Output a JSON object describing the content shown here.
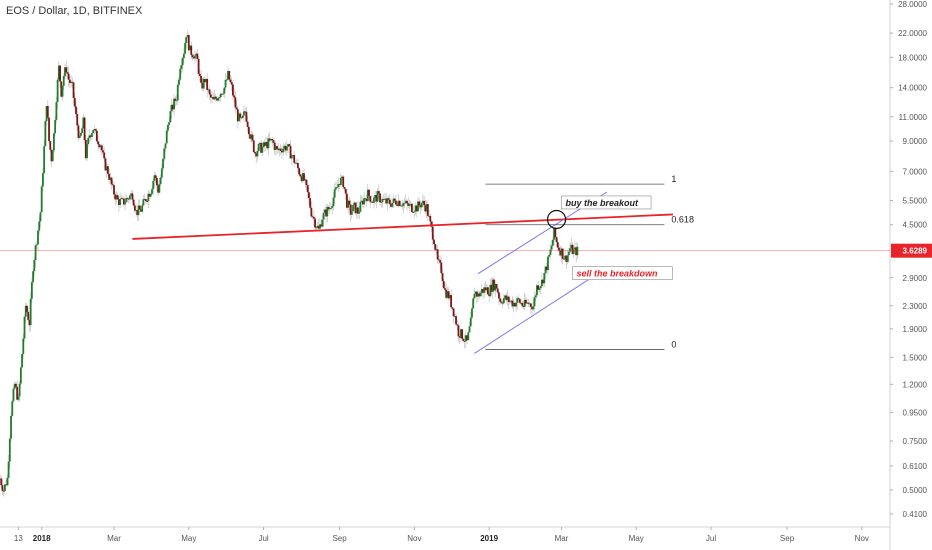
{
  "symbol_title": "EOS / Dollar, 1D, BITFINEX",
  "colors": {
    "up": "#1e7d2a",
    "down": "#7a1616",
    "trendline": "#e8242a",
    "channel": "#7b78e8",
    "fib": "#555555",
    "price_tag_bg": "#e8242a",
    "sell_text": "#e8242a",
    "buy_text": "#222222"
  },
  "chart_data": {
    "type": "candlestick",
    "title": "EOS / Dollar, 1D, BITFINEX",
    "y_scale": "log",
    "ylim": [
      0.39,
      28
    ],
    "xlim": [
      "2017-11-28",
      "2019-11-24"
    ],
    "grid": false,
    "y_tick_labels": [
      "28.0000",
      "22.0000",
      "18.0000",
      "14.0000",
      "11.0000",
      "9.0000",
      "7.0000",
      "5.5000",
      "4.5000",
      "3.6289",
      "2.9000",
      "2.3000",
      "1.9000",
      "1.5000",
      "1.2000",
      "0.9500",
      "0.7500",
      "0.6100",
      "0.5000",
      "0.4100"
    ],
    "x_ticks": [
      {
        "label": "13",
        "date": "2017-12-13",
        "bold": false
      },
      {
        "label": "2018",
        "date": "2018-01-01",
        "bold": true
      },
      {
        "label": "Mar",
        "date": "2018-03-01",
        "bold": false
      },
      {
        "label": "May",
        "date": "2018-05-01",
        "bold": false
      },
      {
        "label": "Jul",
        "date": "2018-07-01",
        "bold": false
      },
      {
        "label": "Sep",
        "date": "2018-09-01",
        "bold": false
      },
      {
        "label": "Nov",
        "date": "2018-11-01",
        "bold": false
      },
      {
        "label": "2019",
        "date": "2019-01-01",
        "bold": true
      },
      {
        "label": "Mar",
        "date": "2019-03-01",
        "bold": false
      },
      {
        "label": "May",
        "date": "2019-05-01",
        "bold": false
      },
      {
        "label": "Jul",
        "date": "2019-07-01",
        "bold": false
      },
      {
        "label": "Sep",
        "date": "2019-09-01",
        "bold": false
      },
      {
        "label": "Nov",
        "date": "2019-11-01",
        "bold": false
      }
    ],
    "last_price": 3.6289,
    "close_series": [
      [
        "2017-11-28",
        0.55
      ],
      [
        "2017-12-01",
        0.5
      ],
      [
        "2017-12-04",
        0.55
      ],
      [
        "2017-12-07",
        0.95
      ],
      [
        "2017-12-10",
        1.2
      ],
      [
        "2017-12-13",
        1.05
      ],
      [
        "2017-12-16",
        1.55
      ],
      [
        "2017-12-19",
        2.3
      ],
      [
        "2017-12-22",
        2.0
      ],
      [
        "2017-12-25",
        3.2
      ],
      [
        "2017-12-28",
        4.0
      ],
      [
        "2017-12-31",
        5.0
      ],
      [
        "2018-01-03",
        8.5
      ],
      [
        "2018-01-05",
        12.5
      ],
      [
        "2018-01-07",
        9.0
      ],
      [
        "2018-01-09",
        7.8
      ],
      [
        "2018-01-11",
        9.5
      ],
      [
        "2018-01-13",
        13.0
      ],
      [
        "2018-01-15",
        16.5
      ],
      [
        "2018-01-17",
        13.5
      ],
      [
        "2018-01-19",
        15.5
      ],
      [
        "2018-01-21",
        16.5
      ],
      [
        "2018-01-23",
        15.0
      ],
      [
        "2018-01-26",
        14.0
      ],
      [
        "2018-01-29",
        11.0
      ],
      [
        "2018-02-01",
        9.0
      ],
      [
        "2018-02-04",
        10.5
      ],
      [
        "2018-02-06",
        8.0
      ],
      [
        "2018-02-09",
        9.5
      ],
      [
        "2018-02-12",
        10.0
      ],
      [
        "2018-02-15",
        9.2
      ],
      [
        "2018-02-18",
        8.8
      ],
      [
        "2018-02-21",
        7.5
      ],
      [
        "2018-02-24",
        7.0
      ],
      [
        "2018-02-28",
        6.0
      ],
      [
        "2018-03-04",
        5.5
      ],
      [
        "2018-03-08",
        5.4
      ],
      [
        "2018-03-12",
        5.6
      ],
      [
        "2018-03-16",
        5.8
      ],
      [
        "2018-03-19",
        5.0
      ],
      [
        "2018-03-23",
        5.1
      ],
      [
        "2018-03-27",
        5.6
      ],
      [
        "2018-03-31",
        6.0
      ],
      [
        "2018-04-03",
        6.8
      ],
      [
        "2018-04-06",
        6.0
      ],
      [
        "2018-04-09",
        7.0
      ],
      [
        "2018-04-12",
        9.0
      ],
      [
        "2018-04-15",
        11.0
      ],
      [
        "2018-04-18",
        12.0
      ],
      [
        "2018-04-21",
        13.0
      ],
      [
        "2018-04-24",
        17.0
      ],
      [
        "2018-04-27",
        19.0
      ],
      [
        "2018-04-29",
        22.0
      ],
      [
        "2018-05-02",
        19.0
      ],
      [
        "2018-05-05",
        18.5
      ],
      [
        "2018-05-08",
        17.5
      ],
      [
        "2018-05-11",
        14.0
      ],
      [
        "2018-05-14",
        15.0
      ],
      [
        "2018-05-18",
        13.0
      ],
      [
        "2018-05-21",
        12.5
      ],
      [
        "2018-05-24",
        13.0
      ],
      [
        "2018-05-27",
        13.5
      ],
      [
        "2018-05-30",
        14.0
      ],
      [
        "2018-06-02",
        15.5
      ],
      [
        "2018-06-05",
        14.0
      ],
      [
        "2018-06-08",
        12.0
      ],
      [
        "2018-06-10",
        11.0
      ],
      [
        "2018-06-13",
        10.5
      ],
      [
        "2018-06-16",
        11.5
      ],
      [
        "2018-06-20",
        9.5
      ],
      [
        "2018-06-24",
        8.2
      ],
      [
        "2018-06-27",
        8.5
      ],
      [
        "2018-06-30",
        8.5
      ],
      [
        "2018-07-04",
        8.8
      ],
      [
        "2018-07-08",
        9.0
      ],
      [
        "2018-07-12",
        8.3
      ],
      [
        "2018-07-16",
        8.5
      ],
      [
        "2018-07-20",
        8.6
      ],
      [
        "2018-07-24",
        8.0
      ],
      [
        "2018-07-27",
        7.5
      ],
      [
        "2018-07-30",
        7.0
      ],
      [
        "2018-08-03",
        6.5
      ],
      [
        "2018-08-06",
        5.8
      ],
      [
        "2018-08-09",
        5.0
      ],
      [
        "2018-08-12",
        4.6
      ],
      [
        "2018-08-15",
        4.3
      ],
      [
        "2018-08-18",
        4.8
      ],
      [
        "2018-08-21",
        5.0
      ],
      [
        "2018-08-24",
        5.2
      ],
      [
        "2018-08-28",
        5.8
      ],
      [
        "2018-09-01",
        6.5
      ],
      [
        "2018-09-04",
        6.4
      ],
      [
        "2018-09-07",
        5.4
      ],
      [
        "2018-09-10",
        5.0
      ],
      [
        "2018-09-13",
        5.2
      ],
      [
        "2018-09-16",
        5.0
      ],
      [
        "2018-09-20",
        5.5
      ],
      [
        "2018-09-24",
        5.8
      ],
      [
        "2018-09-28",
        5.5
      ],
      [
        "2018-10-02",
        5.7
      ],
      [
        "2018-10-06",
        5.5
      ],
      [
        "2018-10-10",
        5.4
      ],
      [
        "2018-10-14",
        5.4
      ],
      [
        "2018-10-18",
        5.5
      ],
      [
        "2018-10-22",
        5.4
      ],
      [
        "2018-10-26",
        5.3
      ],
      [
        "2018-10-30",
        5.2
      ],
      [
        "2018-11-03",
        5.2
      ],
      [
        "2018-11-07",
        5.4
      ],
      [
        "2018-11-11",
        5.2
      ],
      [
        "2018-11-14",
        4.5
      ],
      [
        "2018-11-17",
        4.0
      ],
      [
        "2018-11-20",
        3.3
      ],
      [
        "2018-11-23",
        3.1
      ],
      [
        "2018-11-26",
        2.6
      ],
      [
        "2018-11-29",
        2.5
      ],
      [
        "2018-12-03",
        2.2
      ],
      [
        "2018-12-07",
        1.85
      ],
      [
        "2018-12-10",
        1.8
      ],
      [
        "2018-12-14",
        1.7
      ],
      [
        "2018-12-17",
        2.0
      ],
      [
        "2018-12-20",
        2.6
      ],
      [
        "2018-12-23",
        2.5
      ],
      [
        "2018-12-26",
        2.6
      ],
      [
        "2018-12-29",
        2.65
      ],
      [
        "2019-01-01",
        2.6
      ],
      [
        "2019-01-04",
        2.75
      ],
      [
        "2019-01-07",
        2.7
      ],
      [
        "2019-01-10",
        2.4
      ],
      [
        "2019-01-13",
        2.45
      ],
      [
        "2019-01-17",
        2.4
      ],
      [
        "2019-01-21",
        2.35
      ],
      [
        "2019-01-25",
        2.4
      ],
      [
        "2019-01-29",
        2.3
      ],
      [
        "2019-02-02",
        2.35
      ],
      [
        "2019-02-06",
        2.3
      ],
      [
        "2019-02-09",
        2.7
      ],
      [
        "2019-02-13",
        2.8
      ],
      [
        "2019-02-17",
        3.2
      ],
      [
        "2019-02-20",
        3.6
      ],
      [
        "2019-02-23",
        4.2
      ],
      [
        "2019-02-25",
        3.9
      ],
      [
        "2019-02-27",
        3.7
      ],
      [
        "2019-03-01",
        3.6
      ],
      [
        "2019-03-04",
        3.4
      ],
      [
        "2019-03-06",
        3.5
      ],
      [
        "2019-03-08",
        3.7
      ],
      [
        "2019-03-11",
        3.6
      ],
      [
        "2019-03-14",
        3.63
      ]
    ],
    "annotations": {
      "trendline": {
        "from": [
          "2018-03-16",
          4.0
        ],
        "to": [
          "2019-05-31",
          4.9
        ]
      },
      "channel_upper": {
        "from": [
          "2018-12-23",
          3.0
        ],
        "to": [
          "2019-04-07",
          5.9
        ]
      },
      "channel_lower": {
        "from": [
          "2018-12-20",
          1.55
        ],
        "to": [
          "2019-04-07",
          3.15
        ]
      },
      "fib_levels": [
        {
          "label": "1",
          "value": 6.3
        },
        {
          "label": "0.618",
          "value": 4.5
        },
        {
          "label": "0",
          "value": 1.6
        }
      ],
      "fib_start_date": "2018-12-29",
      "fib_end_date": "2019-05-24",
      "notes": [
        {
          "text": "buy the breakout",
          "date": "2019-03-01",
          "value": 5.3,
          "color": "#222222"
        },
        {
          "text": "sell the breakdown",
          "date": "2019-03-10",
          "value": 2.95,
          "color": "#e8242a"
        }
      ],
      "circle": {
        "date": "2019-02-25",
        "value": 4.7
      }
    }
  }
}
